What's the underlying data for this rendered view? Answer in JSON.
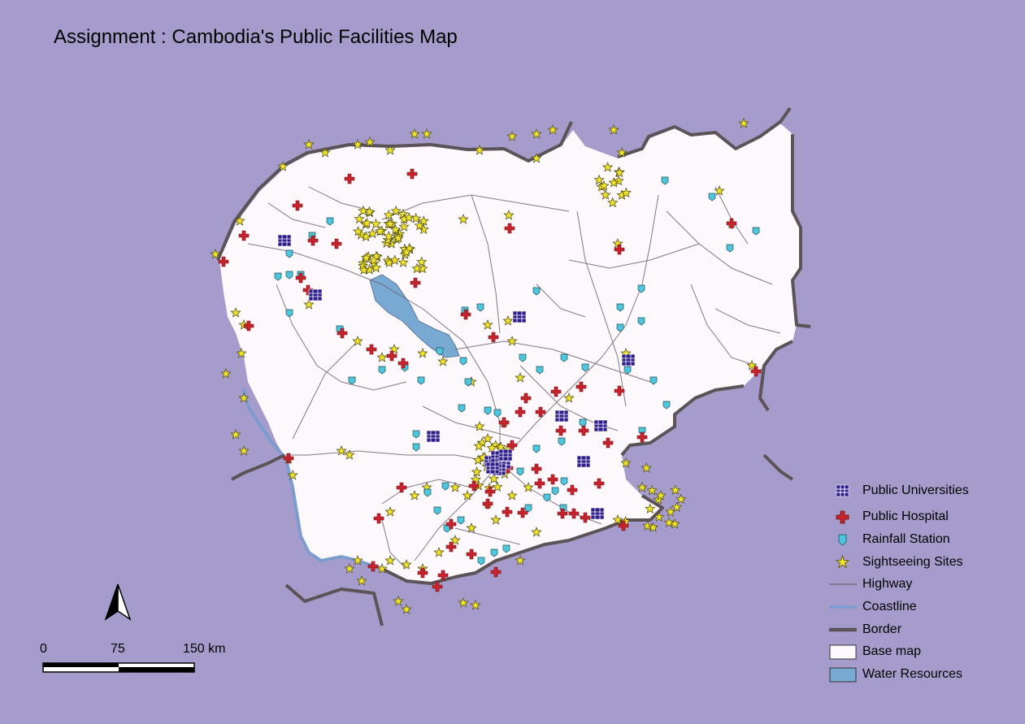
{
  "map": {
    "title": "Assignment : Cambodia's Public Facilities Map",
    "colors": {
      "background": "#a69ccb",
      "base_map": "#fdf8fc",
      "water": "#78a9d3",
      "coastline": "#7c9ccd",
      "border": "#5b5358",
      "highway": "#6c6270",
      "university": "#2d1d8a",
      "hospital": "#c8232d",
      "rainfall": "#4ec7dc",
      "sightseeing": "#efe32a"
    }
  },
  "legend": {
    "items": [
      {
        "label": "Public Universities",
        "icon": "university-icon"
      },
      {
        "label": "Public Hospital",
        "icon": "hospital-cross-icon"
      },
      {
        "label": "Rainfall Station",
        "icon": "rainfall-station-icon"
      },
      {
        "label": "Sightseeing Sites",
        "icon": "star-icon"
      },
      {
        "label": "Highway",
        "icon": "thin-line-icon"
      },
      {
        "label": "Coastline",
        "icon": "blue-line-icon"
      },
      {
        "label": "Border",
        "icon": "thick-line-icon"
      },
      {
        "label": "Base map",
        "icon": "white-box-icon"
      },
      {
        "label": "Water Resources",
        "icon": "blue-box-icon"
      }
    ]
  },
  "scale_bar": {
    "labels": [
      "0",
      "75",
      "150 km"
    ]
  }
}
